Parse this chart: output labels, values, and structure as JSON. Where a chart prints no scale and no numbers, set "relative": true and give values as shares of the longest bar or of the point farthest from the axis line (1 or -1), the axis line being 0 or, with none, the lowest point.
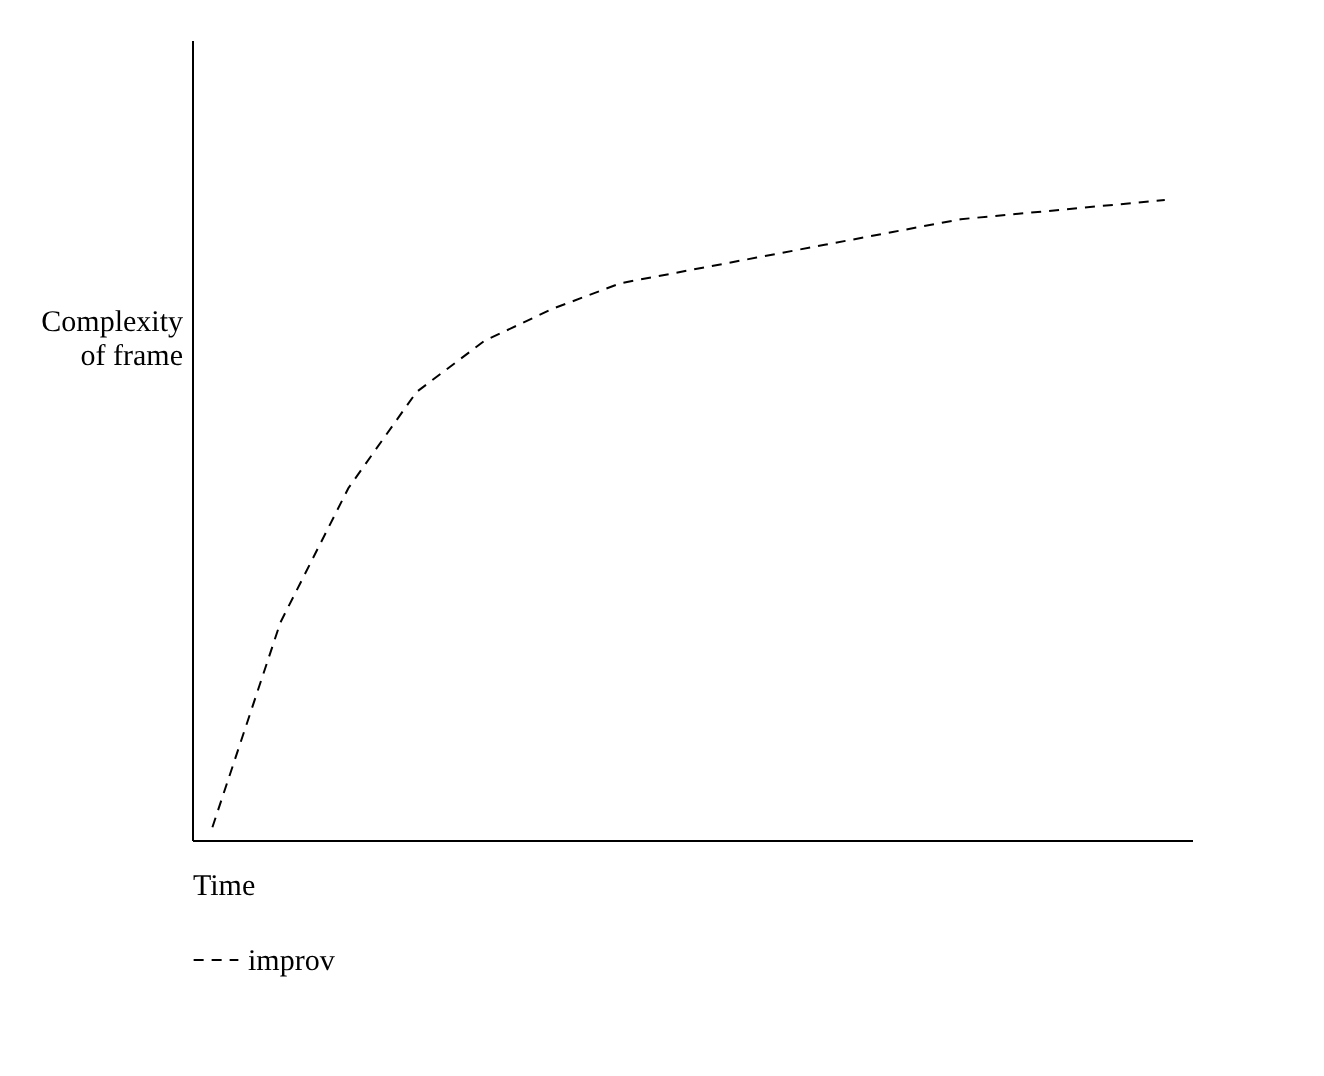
{
  "chart_data": {
    "type": "line",
    "relative": true,
    "xlabel": "Time",
    "ylabel": "Complexity of frame",
    "categories": [
      null,
      null,
      null,
      null,
      null,
      null,
      null,
      null,
      null,
      null,
      null,
      null,
      null,
      null,
      null
    ],
    "series": [
      {
        "name": "improv",
        "color": "#000000",
        "values": [
          0.02,
          0.34,
          0.55,
          0.7,
          0.78,
          0.83,
          0.87,
          0.89,
          0.91,
          0.93,
          0.95,
          0.97,
          0.98,
          0.99,
          1.0
        ]
      }
    ],
    "line_style": "dashed",
    "marker": "none",
    "grid": false,
    "legend": "bottom",
    "tick_labels": false
  }
}
